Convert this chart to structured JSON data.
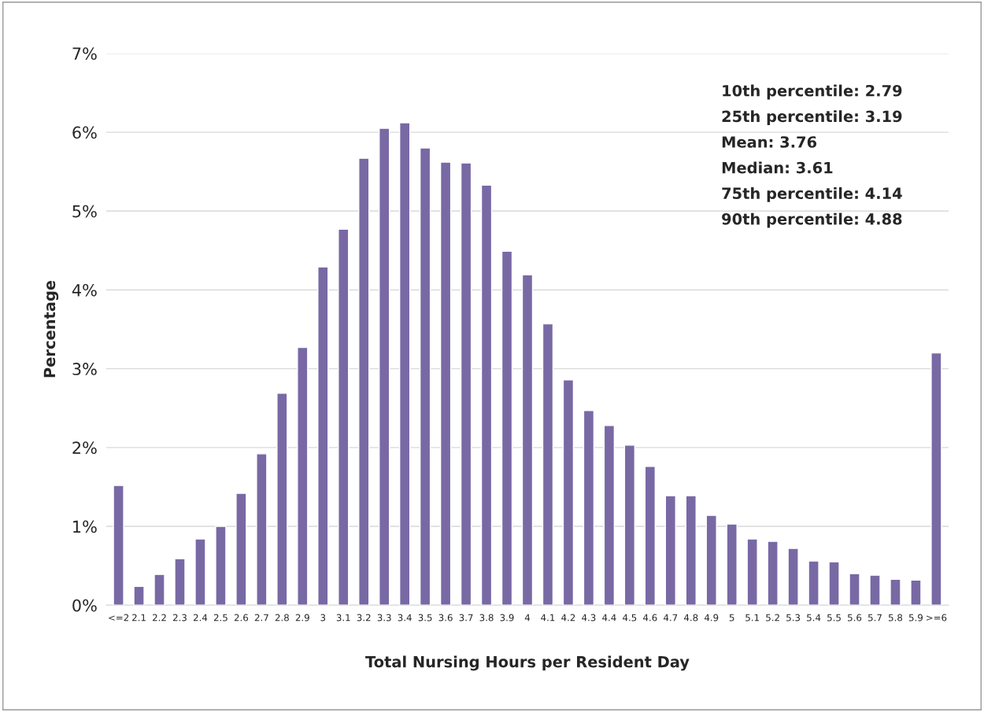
{
  "chart_data": {
    "type": "bar",
    "xlabel": "Total Nursing Hours per Resident Day",
    "ylabel": "Percentage",
    "categories": [
      "<=2",
      "2.1",
      "2.2",
      "2.3",
      "2.4",
      "2.5",
      "2.6",
      "2.7",
      "2.8",
      "2.9",
      "3",
      "3.1",
      "3.2",
      "3.3",
      "3.4",
      "3.5",
      "3.6",
      "3.7",
      "3.8",
      "3.9",
      "4",
      "4.1",
      "4.2",
      "4.3",
      "4.4",
      "4.5",
      "4.6",
      "4.7",
      "4.8",
      "4.9",
      "5",
      "5.1",
      "5.2",
      "5.3",
      "5.4",
      "5.5",
      "5.6",
      "5.7",
      "5.8",
      "5.9",
      ">=6"
    ],
    "series": [
      {
        "color": "#7869a5",
        "values": [
          1.52,
          0.24,
          0.39,
          0.59,
          0.84,
          1.0,
          1.42,
          1.92,
          2.69,
          3.27,
          4.29,
          4.77,
          5.67,
          6.05,
          6.12,
          5.8,
          5.62,
          5.61,
          5.33,
          4.49,
          4.19,
          3.57,
          2.86,
          2.47,
          2.28,
          2.03,
          1.76,
          1.39,
          1.39,
          1.14,
          1.03,
          0.84,
          0.81,
          0.72,
          0.56,
          0.55,
          0.4,
          0.38,
          0.33,
          0.32,
          3.2
        ]
      }
    ],
    "ylim": [
      0,
      7
    ],
    "yticks": [
      {
        "value": 0,
        "label": "0%"
      },
      {
        "value": 1,
        "label": "1%"
      },
      {
        "value": 2,
        "label": "2%"
      },
      {
        "value": 3,
        "label": "3%"
      },
      {
        "value": 4,
        "label": "4%"
      },
      {
        "value": 5,
        "label": "5%"
      },
      {
        "value": 6,
        "label": "6%"
      },
      {
        "value": 7,
        "label": "7%"
      }
    ],
    "grid": "y",
    "legend": false,
    "annotations": [
      "10th percentile: 2.79",
      "25th percentile: 3.19",
      "Mean: 3.76",
      "Median: 3.61",
      "75th percentile: 4.14",
      "90th percentile: 4.88"
    ]
  }
}
